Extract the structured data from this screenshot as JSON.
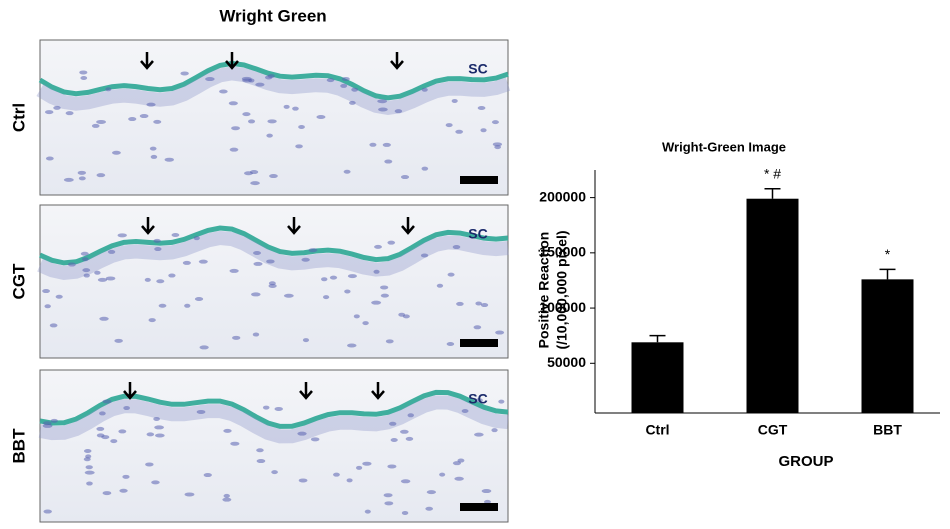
{
  "figure": {
    "title": "Wright Green",
    "panels": [
      {
        "label": "Ctrl",
        "layer": "SC"
      },
      {
        "label": "CGT",
        "layer": "SC"
      },
      {
        "label": "BBT",
        "layer": "SC"
      }
    ]
  },
  "chart_data": {
    "type": "bar",
    "title": "Wright-Green Image",
    "y_label": [
      "Positive Reaction",
      "(/10,000,000 pixel)"
    ],
    "x_label": "GROUP",
    "categories": [
      "Ctrl",
      "CGT",
      "BBT"
    ],
    "values": [
      69000,
      199000,
      126000
    ],
    "errors": [
      6000,
      9000,
      9000
    ],
    "sig_labels": [
      null,
      "* #",
      "*"
    ],
    "color": "#000000",
    "ylim": [
      5000,
      225000
    ],
    "yticks": [
      50000,
      100000,
      150000,
      200000
    ],
    "grid": false
  }
}
